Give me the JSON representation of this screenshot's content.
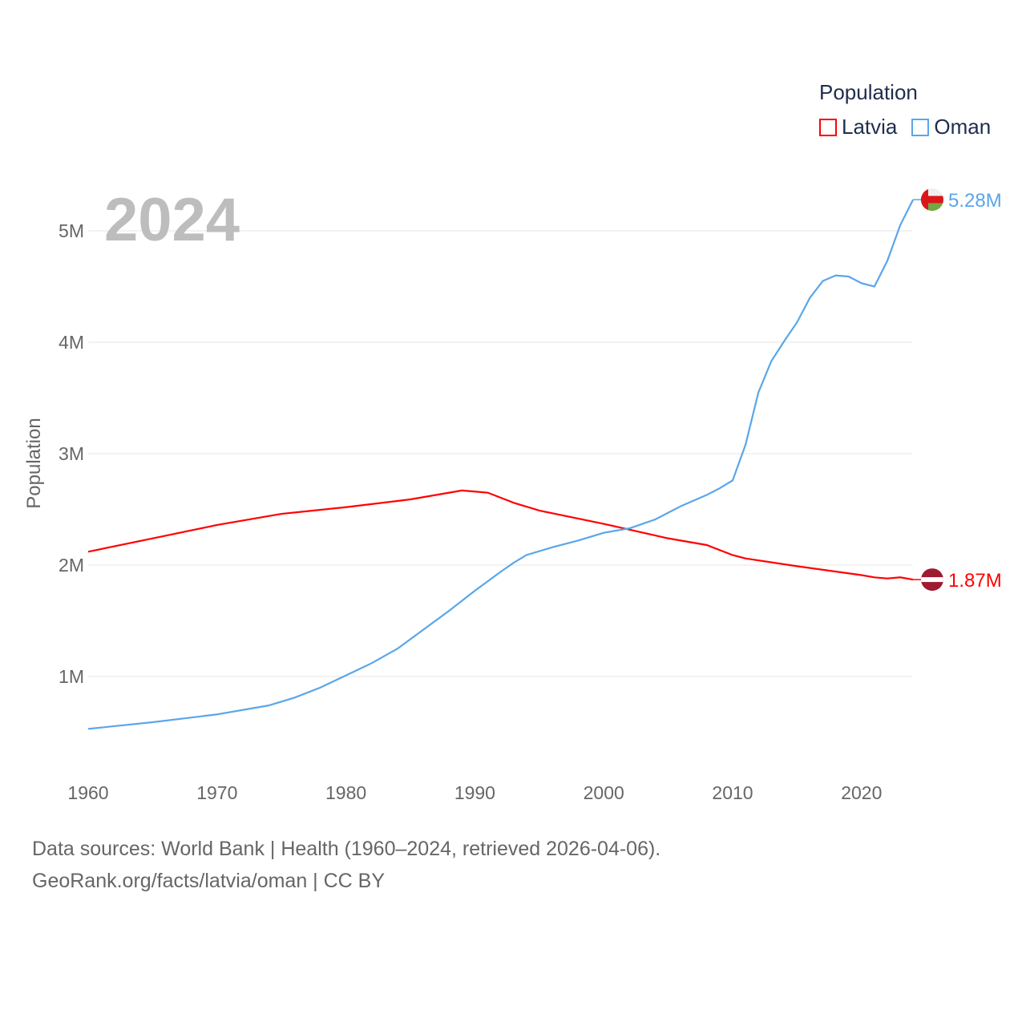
{
  "chart_data": {
    "type": "line",
    "title": "2024",
    "xlabel": "",
    "ylabel": "Population",
    "xlim": [
      1960,
      2024
    ],
    "ylim": [
      0,
      5400000
    ],
    "grid": true,
    "legend": {
      "title": "Population",
      "placement": "top-right"
    },
    "y_ticks": [
      {
        "v": 1000000,
        "label": "1M"
      },
      {
        "v": 2000000,
        "label": "2M"
      },
      {
        "v": 3000000,
        "label": "3M"
      },
      {
        "v": 4000000,
        "label": "4M"
      },
      {
        "v": 5000000,
        "label": "5M"
      }
    ],
    "x_ticks": [
      1960,
      1970,
      1980,
      1990,
      2000,
      2010,
      2020
    ],
    "series": [
      {
        "name": "Latvia",
        "color": "#ff0000",
        "end_label": "1.87M",
        "x": [
          1960,
          1965,
          1970,
          1975,
          1980,
          1985,
          1989,
          1990,
          1991,
          1993,
          1995,
          2000,
          2005,
          2008,
          2010,
          2011,
          2015,
          2020,
          2021,
          2022,
          2023,
          2024
        ],
        "y": [
          2.12,
          2.24,
          2.36,
          2.46,
          2.52,
          2.59,
          2.67,
          2.66,
          2.65,
          2.56,
          2.49,
          2.37,
          2.24,
          2.18,
          2.09,
          2.06,
          1.99,
          1.91,
          1.89,
          1.88,
          1.89,
          1.87
        ]
      },
      {
        "name": "Oman",
        "color": "#5aa6ea",
        "end_label": "5.28M",
        "x": [
          1960,
          1965,
          1970,
          1974,
          1976,
          1978,
          1980,
          1982,
          1984,
          1986,
          1988,
          1990,
          1992,
          1993,
          1994,
          1996,
          1998,
          2000,
          2002,
          2003,
          2004,
          2006,
          2008,
          2009,
          2010,
          2011,
          2012,
          2013,
          2014,
          2015,
          2016,
          2017,
          2018,
          2019,
          2020,
          2021,
          2022,
          2023,
          2024
        ],
        "y": [
          0.53,
          0.59,
          0.66,
          0.74,
          0.81,
          0.9,
          1.01,
          1.12,
          1.25,
          1.42,
          1.59,
          1.77,
          1.94,
          2.02,
          2.09,
          2.16,
          2.22,
          2.29,
          2.33,
          2.37,
          2.41,
          2.53,
          2.63,
          2.69,
          2.76,
          3.08,
          3.55,
          3.83,
          4.01,
          4.18,
          4.4,
          4.55,
          4.6,
          4.59,
          4.53,
          4.5,
          4.73,
          5.05,
          5.28
        ]
      }
    ],
    "y_unit": "millions"
  },
  "footer": {
    "line1": "Data sources: World Bank | Health (1960–2024, retrieved 2026-04-06).",
    "line2": "GeoRank.org/facts/latvia/oman | CC BY"
  }
}
